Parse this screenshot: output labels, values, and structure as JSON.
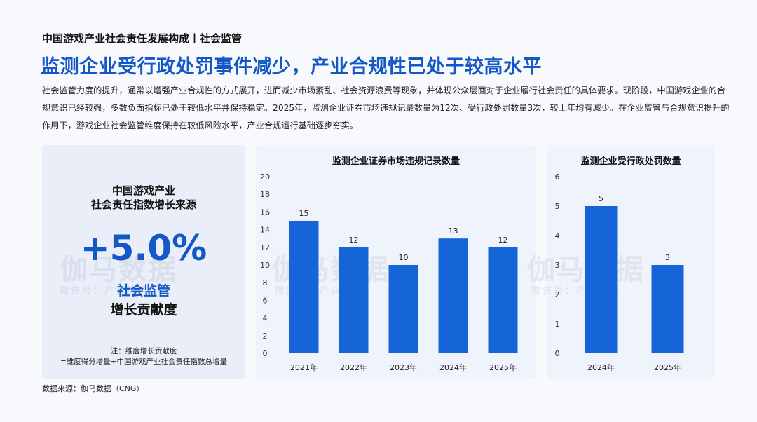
{
  "header": {
    "section_title": "中国游戏产业社会责任发展构成丨社会监管",
    "headline": "监测企业受行政处罚事件减少，产业合规性已处于较高水平",
    "description": "社会监管力度的提升，通常以增强产业合规性的方式展开，进而减少市场紊乱、社会资源浪费等现象，并体现公众层面对于企业履行社会责任的具体要求。现阶段，中国游戏企业的合规意识已经较强，多数负面指标已处于较低水平并保持稳定。2025年，监测企业证券市场违规记录数量为12次、受行政处罚数量3次，较上年均有减少。在企业监管与合规意识提升的作用下，游戏企业社会监管维度保持在较低风险水平，产业合规运行基础逐步夯实。"
  },
  "kpi": {
    "subtitle_line1": "中国游戏产业",
    "subtitle_line2": "社会责任指数增长来源",
    "value": "+5.0%",
    "label_line1": "社会监管",
    "label_line2": "增长贡献度",
    "note_line1": "注：维度增长贡献度",
    "note_line2": "=维度得分增量÷中国游戏产业社会责任指数总增量"
  },
  "watermark": {
    "main": "伽马数据",
    "sub": "微信号：产业报告"
  },
  "source": "数据来源：伽马数据（CNG）",
  "colors": {
    "bar": "#1565d8",
    "accent": "#1458c8",
    "panel": "#eef2fb"
  },
  "chart_data": [
    {
      "type": "bar",
      "title": "监测企业证券市场违规记录数量",
      "categories": [
        "2021年",
        "2022年",
        "2023年",
        "2024年",
        "2025年"
      ],
      "values": [
        15,
        12,
        10,
        13,
        12
      ],
      "ylim": [
        0,
        20
      ],
      "yticks": [
        0,
        2,
        4,
        6,
        8,
        10,
        12,
        14,
        16,
        18,
        20
      ],
      "grid": false,
      "data_labels": true
    },
    {
      "type": "bar",
      "title": "监测企业受行政处罚数量",
      "categories": [
        "2024年",
        "2025年"
      ],
      "values": [
        5,
        3
      ],
      "ylim": [
        0,
        6
      ],
      "yticks": [
        0,
        1,
        2,
        3,
        4,
        5,
        6
      ],
      "grid": false,
      "data_labels": true
    }
  ]
}
